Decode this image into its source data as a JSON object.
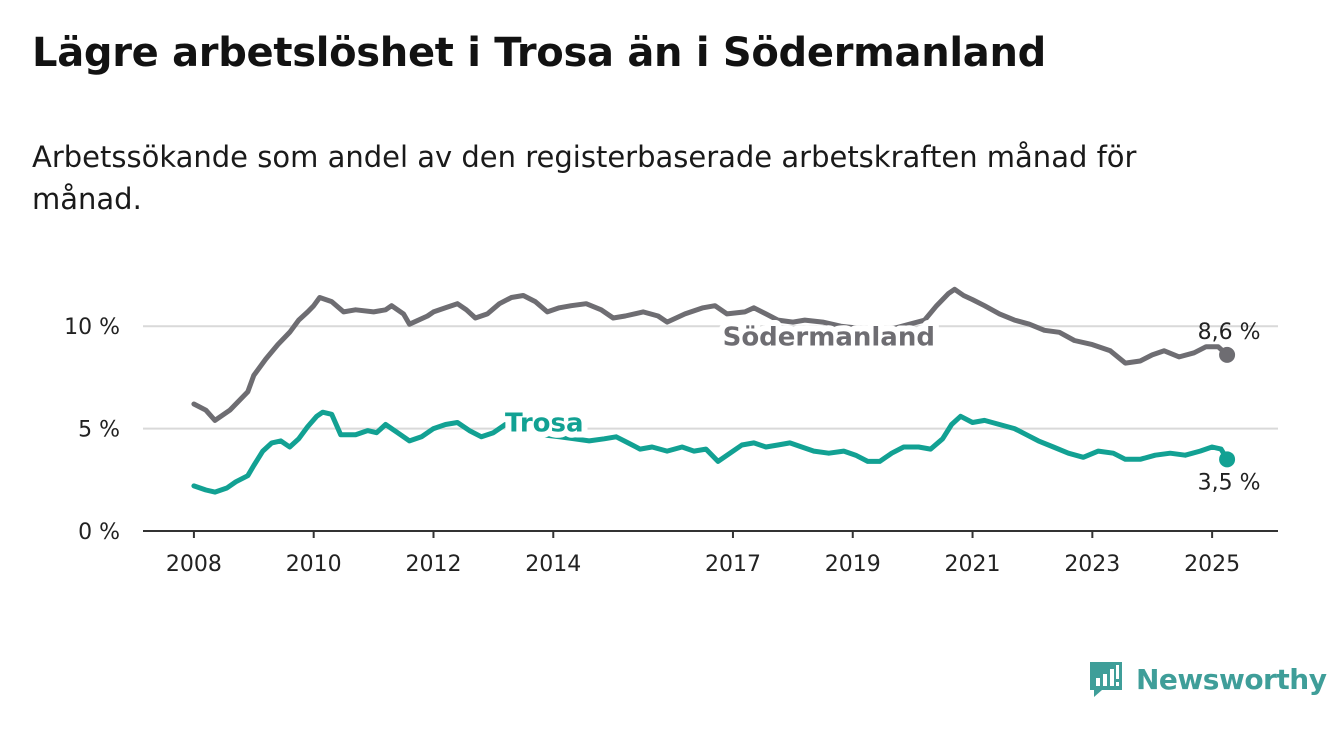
{
  "title": "Lägre arbetslöshet i Trosa än i Södermanland",
  "subtitle": "Arbetssökande som andel av den registerbaserade arbetskraften månad för månad.",
  "brand": {
    "name": "Newsworthy",
    "color": "#3f9e99",
    "icon": "bar-chart-logo-icon"
  },
  "chart_data": {
    "type": "line",
    "xlim": [
      2007.15,
      2026.1
    ],
    "ylim": [
      0,
      12.5
    ],
    "x_ticks": [
      2008,
      2010,
      2012,
      2014,
      2017,
      2019,
      2021,
      2023,
      2025
    ],
    "x_tick_labels": [
      "2008",
      "2010",
      "2012",
      "2014",
      "2017",
      "2019",
      "2021",
      "2023",
      "2025"
    ],
    "y_ticks": [
      0,
      5,
      10
    ],
    "y_tick_labels": [
      "0 %",
      "5 %",
      "10 %"
    ],
    "grid": true,
    "series": [
      {
        "name": "Södermanland",
        "color": "#6e6d72",
        "end_label": "8,6 %",
        "points": [
          [
            2008.0,
            6.2
          ],
          [
            2008.2,
            5.9
          ],
          [
            2008.35,
            5.4
          ],
          [
            2008.6,
            5.9
          ],
          [
            2008.9,
            6.8
          ],
          [
            2009.0,
            7.6
          ],
          [
            2009.2,
            8.4
          ],
          [
            2009.4,
            9.1
          ],
          [
            2009.6,
            9.7
          ],
          [
            2009.75,
            10.3
          ],
          [
            2009.9,
            10.7
          ],
          [
            2010.0,
            11.0
          ],
          [
            2010.1,
            11.4
          ],
          [
            2010.3,
            11.2
          ],
          [
            2010.5,
            10.7
          ],
          [
            2010.7,
            10.8
          ],
          [
            2011.0,
            10.7
          ],
          [
            2011.2,
            10.8
          ],
          [
            2011.3,
            11.0
          ],
          [
            2011.5,
            10.6
          ],
          [
            2011.6,
            10.1
          ],
          [
            2011.9,
            10.5
          ],
          [
            2012.0,
            10.7
          ],
          [
            2012.2,
            10.9
          ],
          [
            2012.4,
            11.1
          ],
          [
            2012.55,
            10.8
          ],
          [
            2012.7,
            10.4
          ],
          [
            2012.9,
            10.6
          ],
          [
            2013.1,
            11.1
          ],
          [
            2013.3,
            11.4
          ],
          [
            2013.5,
            11.5
          ],
          [
            2013.7,
            11.2
          ],
          [
            2013.9,
            10.7
          ],
          [
            2014.1,
            10.9
          ],
          [
            2014.3,
            11.0
          ],
          [
            2014.55,
            11.1
          ],
          [
            2014.8,
            10.8
          ],
          [
            2015.0,
            10.4
          ],
          [
            2015.2,
            10.5
          ],
          [
            2015.5,
            10.7
          ],
          [
            2015.75,
            10.5
          ],
          [
            2015.9,
            10.2
          ],
          [
            2016.2,
            10.6
          ],
          [
            2016.5,
            10.9
          ],
          [
            2016.7,
            11.0
          ],
          [
            2016.9,
            10.6
          ],
          [
            2017.2,
            10.7
          ],
          [
            2017.35,
            10.9
          ],
          [
            2017.55,
            10.6
          ],
          [
            2017.75,
            10.3
          ],
          [
            2018.0,
            10.2
          ],
          [
            2018.2,
            10.3
          ],
          [
            2018.5,
            10.2
          ],
          [
            2018.8,
            10.0
          ],
          [
            2019.1,
            9.9
          ],
          [
            2019.4,
            9.8
          ],
          [
            2019.7,
            9.9
          ],
          [
            2019.95,
            10.1
          ],
          [
            2020.2,
            10.3
          ],
          [
            2020.4,
            11.0
          ],
          [
            2020.6,
            11.6
          ],
          [
            2020.7,
            11.8
          ],
          [
            2020.85,
            11.5
          ],
          [
            2021.0,
            11.3
          ],
          [
            2021.2,
            11.0
          ],
          [
            2021.45,
            10.6
          ],
          [
            2021.7,
            10.3
          ],
          [
            2021.95,
            10.1
          ],
          [
            2022.2,
            9.8
          ],
          [
            2022.45,
            9.7
          ],
          [
            2022.7,
            9.3
          ],
          [
            2023.0,
            9.1
          ],
          [
            2023.3,
            8.8
          ],
          [
            2023.55,
            8.2
          ],
          [
            2023.8,
            8.3
          ],
          [
            2024.0,
            8.6
          ],
          [
            2024.2,
            8.8
          ],
          [
            2024.45,
            8.5
          ],
          [
            2024.7,
            8.7
          ],
          [
            2024.9,
            9.0
          ],
          [
            2025.1,
            9.0
          ],
          [
            2025.25,
            8.6
          ]
        ]
      },
      {
        "name": "Trosa",
        "color": "#12a193",
        "end_label": "3,5 %",
        "points": [
          [
            2008.0,
            2.2
          ],
          [
            2008.2,
            2.0
          ],
          [
            2008.35,
            1.9
          ],
          [
            2008.55,
            2.1
          ],
          [
            2008.7,
            2.4
          ],
          [
            2008.9,
            2.7
          ],
          [
            2009.0,
            3.2
          ],
          [
            2009.15,
            3.9
          ],
          [
            2009.3,
            4.3
          ],
          [
            2009.45,
            4.4
          ],
          [
            2009.6,
            4.1
          ],
          [
            2009.75,
            4.5
          ],
          [
            2009.9,
            5.1
          ],
          [
            2010.05,
            5.6
          ],
          [
            2010.15,
            5.8
          ],
          [
            2010.3,
            5.7
          ],
          [
            2010.45,
            4.7
          ],
          [
            2010.7,
            4.7
          ],
          [
            2010.9,
            4.9
          ],
          [
            2011.05,
            4.8
          ],
          [
            2011.2,
            5.2
          ],
          [
            2011.4,
            4.8
          ],
          [
            2011.6,
            4.4
          ],
          [
            2011.8,
            4.6
          ],
          [
            2012.0,
            5.0
          ],
          [
            2012.2,
            5.2
          ],
          [
            2012.4,
            5.3
          ],
          [
            2012.6,
            4.9
          ],
          [
            2012.8,
            4.6
          ],
          [
            2013.0,
            4.8
          ],
          [
            2013.2,
            5.2
          ],
          [
            2013.35,
            5.5
          ],
          [
            2013.6,
            5.0
          ],
          [
            2013.8,
            4.7
          ],
          [
            2014.1,
            4.6
          ],
          [
            2014.35,
            4.5
          ],
          [
            2014.6,
            4.4
          ],
          [
            2014.85,
            4.5
          ],
          [
            2015.05,
            4.6
          ],
          [
            2015.25,
            4.3
          ],
          [
            2015.45,
            4.0
          ],
          [
            2015.65,
            4.1
          ],
          [
            2015.9,
            3.9
          ],
          [
            2016.15,
            4.1
          ],
          [
            2016.35,
            3.9
          ],
          [
            2016.55,
            4.0
          ],
          [
            2016.75,
            3.4
          ],
          [
            2016.95,
            3.8
          ],
          [
            2017.15,
            4.2
          ],
          [
            2017.35,
            4.3
          ],
          [
            2017.55,
            4.1
          ],
          [
            2017.75,
            4.2
          ],
          [
            2017.95,
            4.3
          ],
          [
            2018.15,
            4.1
          ],
          [
            2018.35,
            3.9
          ],
          [
            2018.6,
            3.8
          ],
          [
            2018.85,
            3.9
          ],
          [
            2019.05,
            3.7
          ],
          [
            2019.25,
            3.4
          ],
          [
            2019.45,
            3.4
          ],
          [
            2019.65,
            3.8
          ],
          [
            2019.85,
            4.1
          ],
          [
            2020.1,
            4.1
          ],
          [
            2020.3,
            4.0
          ],
          [
            2020.5,
            4.5
          ],
          [
            2020.65,
            5.2
          ],
          [
            2020.8,
            5.6
          ],
          [
            2021.0,
            5.3
          ],
          [
            2021.2,
            5.4
          ],
          [
            2021.45,
            5.2
          ],
          [
            2021.7,
            5.0
          ],
          [
            2021.9,
            4.7
          ],
          [
            2022.1,
            4.4
          ],
          [
            2022.35,
            4.1
          ],
          [
            2022.6,
            3.8
          ],
          [
            2022.85,
            3.6
          ],
          [
            2023.1,
            3.9
          ],
          [
            2023.35,
            3.8
          ],
          [
            2023.55,
            3.5
          ],
          [
            2023.8,
            3.5
          ],
          [
            2024.05,
            3.7
          ],
          [
            2024.3,
            3.8
          ],
          [
            2024.55,
            3.7
          ],
          [
            2024.8,
            3.9
          ],
          [
            2025.0,
            4.1
          ],
          [
            2025.15,
            4.0
          ],
          [
            2025.25,
            3.5
          ]
        ]
      }
    ]
  }
}
